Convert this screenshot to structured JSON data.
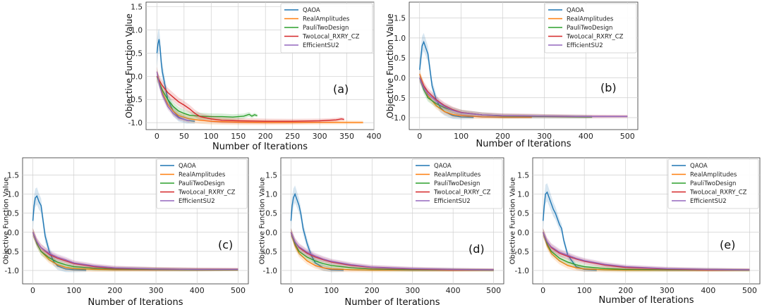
{
  "figure": {
    "legend_entries": [
      "QAOA",
      "RealAmplitudes",
      "PauliTwoDesign",
      "TwoLocal_RXRY_CZ",
      "EfficientSU2"
    ],
    "colors": {
      "QAOA": "#1f77b4",
      "RealAmplitudes": "#ff7f0e",
      "PauliTwoDesign": "#2ca02c",
      "TwoLocal_RXRY_CZ": "#d62728",
      "EfficientSU2": "#9467bd"
    }
  },
  "chart_data": [
    {
      "type": "line",
      "panel_label": "(a)",
      "xlabel": "Number of Iterations",
      "ylabel": "Objective Function Value",
      "xlim": [
        -20,
        400
      ],
      "ylim": [
        -1.15,
        1.6
      ],
      "xticks": [
        "0",
        "50",
        "100",
        "150",
        "200",
        "250",
        "300",
        "350",
        "400"
      ],
      "yticks": [
        "-1.0",
        "-0.5",
        "0.0",
        "0.5",
        "1.0",
        "1.5"
      ],
      "grid": true,
      "legend_position": "top-right",
      "series": [
        {
          "name": "QAOA",
          "x": [
            0,
            2,
            4,
            6,
            8,
            10,
            15,
            20,
            30,
            40,
            55,
            70
          ],
          "y": [
            0.5,
            0.7,
            0.8,
            0.6,
            0.3,
            0.1,
            -0.2,
            -0.5,
            -0.75,
            -0.88,
            -0.95,
            -0.97
          ]
        },
        {
          "name": "RealAmplitudes",
          "x": [
            0,
            5,
            10,
            20,
            30,
            40,
            60,
            80,
            100,
            120,
            150,
            200,
            250,
            300,
            350,
            380
          ],
          "y": [
            0.1,
            -0.15,
            -0.35,
            -0.6,
            -0.75,
            -0.85,
            -0.92,
            -0.95,
            -0.97,
            -0.98,
            -0.99,
            -0.995,
            -0.995,
            -0.995,
            -0.995,
            -0.995
          ]
        },
        {
          "name": "PauliTwoDesign",
          "x": [
            0,
            10,
            20,
            30,
            40,
            50,
            60,
            80,
            100,
            120,
            140,
            160,
            170,
            175,
            180,
            185
          ],
          "y": [
            0.0,
            -0.3,
            -0.5,
            -0.65,
            -0.75,
            -0.8,
            -0.84,
            -0.86,
            -0.87,
            -0.87,
            -0.88,
            -0.86,
            -0.82,
            -0.86,
            -0.83,
            -0.85
          ]
        },
        {
          "name": "TwoLocal_RXRY_CZ",
          "x": [
            0,
            10,
            20,
            30,
            40,
            50,
            60,
            70,
            80,
            100,
            120,
            150,
            200,
            250,
            300,
            330,
            340,
            345
          ],
          "y": [
            0.0,
            -0.2,
            -0.35,
            -0.45,
            -0.55,
            -0.62,
            -0.7,
            -0.8,
            -0.87,
            -0.92,
            -0.95,
            -0.96,
            -0.97,
            -0.97,
            -0.96,
            -0.94,
            -0.92,
            -0.93
          ]
        },
        {
          "name": "EfficientSU2",
          "x": [
            0,
            5,
            10,
            20,
            30,
            40,
            60
          ],
          "y": [
            0.1,
            -0.2,
            -0.4,
            -0.65,
            -0.8,
            -0.9,
            -0.96
          ]
        }
      ]
    },
    {
      "type": "line",
      "panel_label": "(b)",
      "xlabel": "Number of Iterations",
      "ylabel": "Objective Function Value",
      "xlim": [
        -25,
        525
      ],
      "ylim": [
        -1.3,
        1.9
      ],
      "xticks": [
        "0",
        "100",
        "200",
        "300",
        "400",
        "500"
      ],
      "yticks": [
        "-1.0",
        "-0.5",
        "0.0",
        "0.5",
        "1.0",
        "1.5"
      ],
      "grid": true,
      "legend_position": "top-right",
      "series": [
        {
          "name": "QAOA",
          "x": [
            0,
            3,
            6,
            10,
            15,
            20,
            25,
            30,
            40,
            50,
            60,
            80,
            100,
            130
          ],
          "y": [
            0.2,
            0.5,
            0.8,
            0.9,
            0.75,
            0.6,
            0.2,
            -0.2,
            -0.55,
            -0.75,
            -0.85,
            -0.95,
            -0.98,
            -0.99
          ]
        },
        {
          "name": "RealAmplitudes",
          "x": [
            0,
            10,
            20,
            40,
            60,
            80,
            100,
            150,
            200,
            270
          ],
          "y": [
            0.1,
            -0.2,
            -0.45,
            -0.7,
            -0.85,
            -0.92,
            -0.95,
            -0.98,
            -0.99,
            -0.99
          ]
        },
        {
          "name": "PauliTwoDesign",
          "x": [
            0,
            10,
            20,
            40,
            60,
            80,
            100,
            150,
            200,
            300,
            400,
            415
          ],
          "y": [
            0.0,
            -0.3,
            -0.5,
            -0.65,
            -0.75,
            -0.82,
            -0.87,
            -0.93,
            -0.96,
            -0.97,
            -0.98,
            -0.98
          ]
        },
        {
          "name": "TwoLocal_RXRY_CZ",
          "x": [
            0,
            10,
            20,
            40,
            60,
            80,
            100,
            150,
            200,
            300,
            400,
            500
          ],
          "y": [
            0.0,
            -0.2,
            -0.35,
            -0.55,
            -0.7,
            -0.8,
            -0.87,
            -0.93,
            -0.95,
            -0.96,
            -0.97,
            -0.97
          ]
        },
        {
          "name": "EfficientSU2",
          "x": [
            0,
            10,
            20,
            40,
            60,
            80,
            100,
            150,
            200,
            300,
            400,
            500
          ],
          "y": [
            0.0,
            -0.25,
            -0.4,
            -0.58,
            -0.72,
            -0.82,
            -0.88,
            -0.93,
            -0.95,
            -0.96,
            -0.97,
            -0.97
          ]
        }
      ]
    },
    {
      "type": "line",
      "panel_label": "(c)",
      "xlabel": "Number of Iterations",
      "ylabel": "Objective Function Value",
      "xlim": [
        -25,
        525
      ],
      "ylim": [
        -1.35,
        1.95
      ],
      "xticks": [
        "0",
        "100",
        "200",
        "300",
        "400",
        "500"
      ],
      "yticks": [
        "-1.0",
        "-0.5",
        "0.0",
        "0.5",
        "1.0",
        "1.5"
      ],
      "grid": true,
      "legend_position": "top-right",
      "series": [
        {
          "name": "QAOA",
          "x": [
            0,
            3,
            6,
            10,
            15,
            20,
            25,
            30,
            40,
            50,
            60,
            80,
            100,
            130
          ],
          "y": [
            0.3,
            0.7,
            0.9,
            0.95,
            0.8,
            0.7,
            0.3,
            -0.1,
            -0.5,
            -0.75,
            -0.88,
            -0.96,
            -0.98,
            -0.99
          ]
        },
        {
          "name": "RealAmplitudes",
          "x": [
            0,
            10,
            20,
            40,
            60,
            80,
            100,
            150,
            200,
            300,
            400,
            500
          ],
          "y": [
            0.0,
            -0.3,
            -0.5,
            -0.72,
            -0.85,
            -0.92,
            -0.95,
            -0.97,
            -0.98,
            -0.98,
            -0.98,
            -0.98
          ]
        },
        {
          "name": "PauliTwoDesign",
          "x": [
            0,
            10,
            20,
            40,
            60,
            80,
            100,
            150,
            200,
            300,
            400,
            500
          ],
          "y": [
            0.0,
            -0.3,
            -0.5,
            -0.67,
            -0.78,
            -0.85,
            -0.9,
            -0.94,
            -0.96,
            -0.97,
            -0.98,
            -0.98
          ]
        },
        {
          "name": "TwoLocal_RXRY_CZ",
          "x": [
            0,
            10,
            20,
            40,
            60,
            80,
            100,
            150,
            200,
            300,
            400,
            500
          ],
          "y": [
            0.0,
            -0.25,
            -0.4,
            -0.58,
            -0.68,
            -0.75,
            -0.82,
            -0.9,
            -0.94,
            -0.96,
            -0.97,
            -0.97
          ]
        },
        {
          "name": "EfficientSU2",
          "x": [
            0,
            10,
            20,
            40,
            60,
            80,
            100,
            150,
            200,
            300,
            400,
            500
          ],
          "y": [
            0.0,
            -0.25,
            -0.4,
            -0.55,
            -0.65,
            -0.72,
            -0.8,
            -0.88,
            -0.93,
            -0.96,
            -0.97,
            -0.97
          ]
        }
      ]
    },
    {
      "type": "line",
      "panel_label": "(d)",
      "xlabel": "Number of Iterations",
      "ylabel": "Objective Function Value",
      "xlim": [
        -25,
        525
      ],
      "ylim": [
        -1.35,
        1.95
      ],
      "xticks": [
        "0",
        "100",
        "200",
        "300",
        "400",
        "500"
      ],
      "yticks": [
        "-1.0",
        "-0.5",
        "0.0",
        "0.5",
        "1.0",
        "1.5"
      ],
      "grid": true,
      "legend_position": "top-right",
      "series": [
        {
          "name": "QAOA",
          "x": [
            0,
            3,
            6,
            10,
            15,
            20,
            25,
            30,
            40,
            50,
            60,
            80,
            100,
            130
          ],
          "y": [
            0.3,
            0.7,
            0.9,
            1.0,
            0.85,
            0.7,
            0.45,
            0.1,
            -0.3,
            -0.6,
            -0.8,
            -0.93,
            -0.98,
            -0.99
          ]
        },
        {
          "name": "RealAmplitudes",
          "x": [
            0,
            10,
            20,
            40,
            60,
            80,
            100,
            150,
            200,
            300,
            400,
            500
          ],
          "y": [
            0.0,
            -0.35,
            -0.55,
            -0.75,
            -0.87,
            -0.93,
            -0.96,
            -0.98,
            -0.99,
            -0.99,
            -0.99,
            -0.99
          ]
        },
        {
          "name": "PauliTwoDesign",
          "x": [
            0,
            10,
            20,
            40,
            60,
            80,
            100,
            150,
            200,
            300,
            400,
            500
          ],
          "y": [
            0.0,
            -0.3,
            -0.5,
            -0.65,
            -0.75,
            -0.82,
            -0.87,
            -0.93,
            -0.96,
            -0.98,
            -0.98,
            -0.99
          ]
        },
        {
          "name": "TwoLocal_RXRY_CZ",
          "x": [
            0,
            10,
            20,
            40,
            60,
            80,
            100,
            150,
            200,
            300,
            400,
            500
          ],
          "y": [
            0.0,
            -0.25,
            -0.4,
            -0.55,
            -0.65,
            -0.72,
            -0.78,
            -0.87,
            -0.92,
            -0.96,
            -0.98,
            -0.98
          ]
        },
        {
          "name": "EfficientSU2",
          "x": [
            0,
            10,
            20,
            40,
            60,
            80,
            100,
            150,
            200,
            300,
            400,
            500
          ],
          "y": [
            0.0,
            -0.25,
            -0.38,
            -0.52,
            -0.62,
            -0.7,
            -0.76,
            -0.85,
            -0.91,
            -0.95,
            -0.97,
            -0.98
          ]
        }
      ]
    },
    {
      "type": "line",
      "panel_label": "(e)",
      "xlabel": "Number of Iterations",
      "ylabel": "Objective Function Value",
      "xlim": [
        -25,
        525
      ],
      "ylim": [
        -1.35,
        1.95
      ],
      "xticks": [
        "0",
        "100",
        "200",
        "300",
        "400",
        "500"
      ],
      "yticks": [
        "-1.0",
        "-0.5",
        "0.0",
        "0.5",
        "1.0",
        "1.5"
      ],
      "grid": true,
      "legend_position": "top-right",
      "series": [
        {
          "name": "QAOA",
          "x": [
            0,
            3,
            6,
            10,
            15,
            20,
            25,
            30,
            35,
            40,
            45,
            50,
            60,
            80,
            100,
            130
          ],
          "y": [
            0.3,
            0.7,
            1.0,
            1.05,
            0.9,
            0.75,
            0.6,
            0.5,
            0.35,
            0.2,
            0.1,
            -0.2,
            -0.6,
            -0.9,
            -0.97,
            -0.99
          ]
        },
        {
          "name": "RealAmplitudes",
          "x": [
            0,
            10,
            20,
            40,
            60,
            80,
            100,
            150,
            200,
            300,
            400,
            500
          ],
          "y": [
            0.0,
            -0.35,
            -0.55,
            -0.75,
            -0.87,
            -0.93,
            -0.96,
            -0.98,
            -0.99,
            -0.99,
            -0.99,
            -0.99
          ]
        },
        {
          "name": "PauliTwoDesign",
          "x": [
            0,
            10,
            20,
            40,
            60,
            80,
            100,
            150,
            200,
            300,
            400,
            500
          ],
          "y": [
            0.0,
            -0.3,
            -0.5,
            -0.68,
            -0.78,
            -0.85,
            -0.9,
            -0.95,
            -0.97,
            -0.98,
            -0.98,
            -0.99
          ]
        },
        {
          "name": "TwoLocal_RXRY_CZ",
          "x": [
            0,
            10,
            20,
            40,
            60,
            80,
            100,
            150,
            200,
            300,
            400,
            500
          ],
          "y": [
            0.0,
            -0.25,
            -0.4,
            -0.55,
            -0.63,
            -0.7,
            -0.76,
            -0.86,
            -0.92,
            -0.96,
            -0.98,
            -0.98
          ]
        },
        {
          "name": "EfficientSU2",
          "x": [
            0,
            10,
            20,
            40,
            60,
            80,
            100,
            150,
            200,
            300,
            400,
            500
          ],
          "y": [
            0.0,
            -0.25,
            -0.38,
            -0.52,
            -0.6,
            -0.68,
            -0.74,
            -0.84,
            -0.9,
            -0.95,
            -0.97,
            -0.98
          ]
        }
      ]
    }
  ]
}
